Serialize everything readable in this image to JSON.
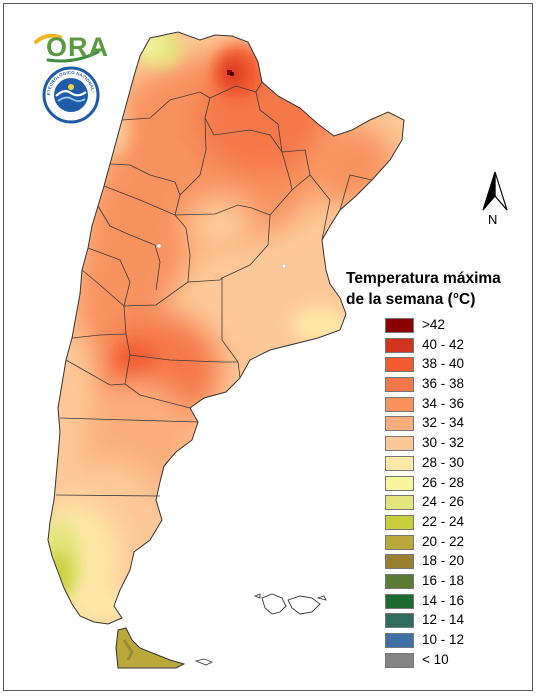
{
  "header": {
    "logo_text": "ORA",
    "seal_text": "SERVICIO METEOROLÓGICO NACIONAL · ARGENTINA"
  },
  "compass": {
    "label": "N"
  },
  "legend": {
    "title_line1": "Temperatura máxima",
    "title_line2": "de la semana (°C)",
    "items": [
      {
        "label": ">42",
        "color": "#8b0000"
      },
      {
        "label": "40 - 42",
        "color": "#d2341e"
      },
      {
        "label": "38 - 40",
        "color": "#f25c30"
      },
      {
        "label": "36 - 38",
        "color": "#f5784a"
      },
      {
        "label": "34 - 36",
        "color": "#f8935e"
      },
      {
        "label": "32 - 34",
        "color": "#fbae7c"
      },
      {
        "label": "30 - 32",
        "color": "#fdc898"
      },
      {
        "label": "28 - 30",
        "color": "#fde8a8"
      },
      {
        "label": "26 - 28",
        "color": "#f8f4a0"
      },
      {
        "label": "24 - 26",
        "color": "#e4e57e"
      },
      {
        "label": "22 - 24",
        "color": "#c9cf3c"
      },
      {
        "label": "20 - 22",
        "color": "#b9a93a"
      },
      {
        "label": "18 - 20",
        "color": "#9b7f33"
      },
      {
        "label": "16 - 18",
        "color": "#5a7d35"
      },
      {
        "label": "14 - 16",
        "color": "#1b6b2c"
      },
      {
        "label": "12 - 14",
        "color": "#2f6e5c"
      },
      {
        "label": "10 - 12",
        "color": "#3e6fa5"
      },
      {
        "label": "< 10",
        "color": "#858585"
      }
    ]
  }
}
